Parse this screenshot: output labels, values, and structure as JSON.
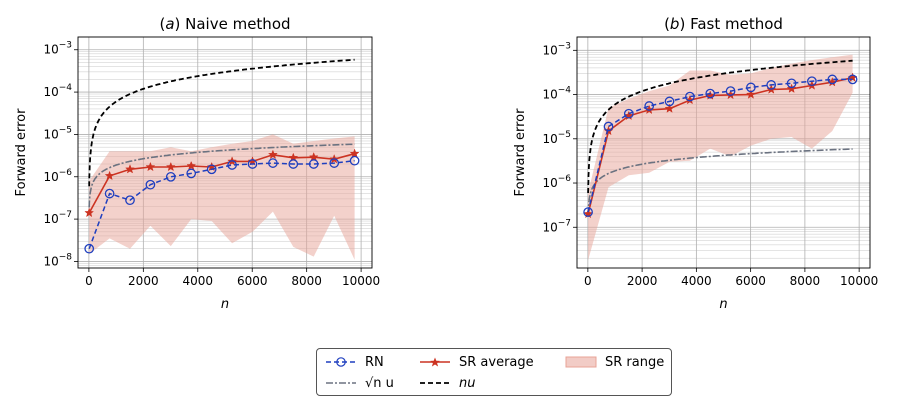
{
  "colors": {
    "rn": "#1f3fbf",
    "sr": "#cc3322",
    "sr_fill": "#e8a397",
    "sqrt": "#6b7280",
    "nu": "#000000",
    "grid": "#c8c8c8"
  },
  "legend": {
    "rn": "RN",
    "sqrt": "√n u",
    "sr_avg": "SR average",
    "nu": "nu",
    "sr_range": "SR range"
  },
  "chart_data": [
    {
      "type": "line",
      "title": "(a) Naive method",
      "xlabel": "n",
      "ylabel": "Forward error",
      "xlim": [
        -400,
        10400
      ],
      "ylim": [
        7e-09,
        0.002
      ],
      "yscale": "log",
      "grid": true,
      "xticks": [
        0,
        2000,
        4000,
        6000,
        8000,
        10000
      ],
      "yticks": [
        "10^-8",
        "10^-7",
        "10^-6",
        "10^-5",
        "10^-4",
        "10^-3"
      ],
      "x": [
        10,
        760,
        1510,
        2260,
        3010,
        3760,
        4510,
        5260,
        6010,
        6760,
        7510,
        8260,
        9010,
        9760
      ],
      "series": [
        {
          "name": "RN",
          "values": [
            2e-08,
            4e-07,
            2.8e-07,
            6.5e-07,
            1e-06,
            1.2e-06,
            1.5e-06,
            1.9e-06,
            2e-06,
            2.1e-06,
            2e-06,
            2e-06,
            2.1e-06,
            2.4e-06
          ]
        },
        {
          "name": "SR average",
          "values": [
            1.4e-07,
            1.05e-06,
            1.5e-06,
            1.7e-06,
            1.7e-06,
            1.8e-06,
            1.7e-06,
            2.3e-06,
            2.3e-06,
            3.3e-06,
            2.8e-06,
            2.9e-06,
            2.6e-06,
            3.5e-06
          ]
        },
        {
          "name": "SR range",
          "lower": [
            1.5e-08,
            3.5e-08,
            2e-08,
            7e-08,
            2.3e-08,
            1e-07,
            9e-08,
            2.7e-08,
            5e-08,
            1.5e-07,
            2.2e-08,
            1.3e-08,
            1.2e-07,
            1.1e-08
          ],
          "upper": [
            8e-07,
            4e-06,
            4e-06,
            4e-06,
            5e-06,
            4e-06,
            5e-06,
            6e-06,
            7e-06,
            1e-05,
            6e-06,
            7e-06,
            8e-06,
            9e-06
          ]
        },
        {
          "name": "√n u",
          "formula": "sqrt"
        },
        {
          "name": "nu",
          "formula": "linear"
        }
      ]
    },
    {
      "type": "line",
      "title": "(b) Fast method",
      "xlabel": "n",
      "ylabel": "Forward error",
      "xlim": [
        -400,
        10400
      ],
      "ylim": [
        1.2e-08,
        0.002
      ],
      "yscale": "log",
      "grid": true,
      "xticks": [
        0,
        2000,
        4000,
        6000,
        8000,
        10000
      ],
      "yticks": [
        "10^-7",
        "10^-6",
        "10^-5",
        "10^-4",
        "10^-3"
      ],
      "x": [
        10,
        760,
        1510,
        2260,
        3010,
        3760,
        4510,
        5260,
        6010,
        6760,
        7510,
        8260,
        9010,
        9760
      ],
      "series": [
        {
          "name": "RN",
          "values": [
            2.2e-07,
            1.9e-05,
            3.7e-05,
            5.5e-05,
            7e-05,
            9e-05,
            0.000105,
            0.00012,
            0.000145,
            0.000165,
            0.00018,
            0.0002,
            0.00022,
            0.00022
          ]
        },
        {
          "name": "SR average",
          "values": [
            2e-07,
            1.5e-05,
            3.3e-05,
            4.5e-05,
            4.8e-05,
            7.5e-05,
            9.5e-05,
            9.8e-05,
            0.0001,
            0.00013,
            0.000135,
            0.00016,
            0.00019,
            0.00024
          ]
        },
        {
          "name": "SR range",
          "lower": [
            1.8e-08,
            8e-07,
            1.5e-06,
            1.7e-06,
            3e-06,
            3.2e-06,
            6e-06,
            4e-06,
            7e-06,
            1e-05,
            1.1e-05,
            6e-06,
            1.5e-05,
            0.00011
          ],
          "upper": [
            6e-07,
            5e-05,
            8e-05,
            0.00012,
            0.00016,
            0.00035,
            0.00035,
            0.00028,
            0.0003,
            0.0004,
            0.0005,
            0.0006,
            0.0007,
            0.0008
          ]
        },
        {
          "name": "√n u",
          "formula": "sqrt"
        },
        {
          "name": "nu",
          "formula": "linear"
        }
      ]
    }
  ]
}
